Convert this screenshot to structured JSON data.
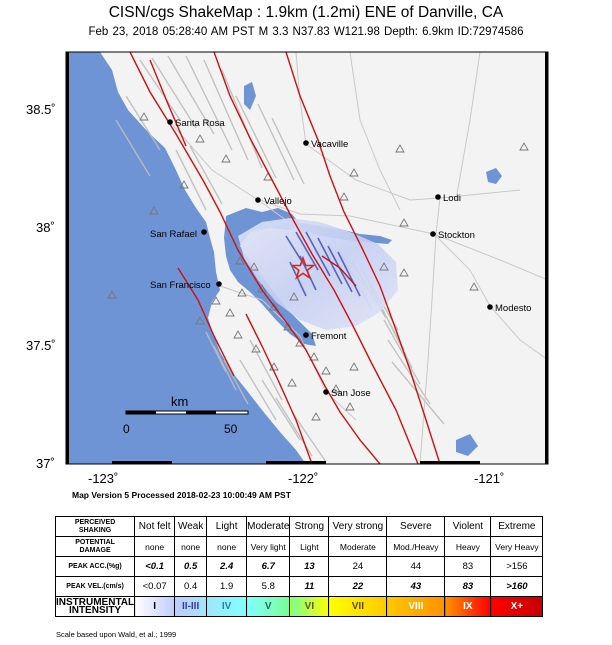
{
  "header": {
    "title": "CISN/cgs ShakeMap : 1.9km (1.2mi) ENE of Danville, CA",
    "subtitle": "Feb 23, 2018 05:28:40 AM PST   M 3.3   N37.83 W121.98   Depth: 6.9km   ID:72974586"
  },
  "map": {
    "lat_labels": [
      "38.5˚",
      "38˚",
      "37.5˚",
      "37˚"
    ],
    "lon_labels": [
      "-123˚",
      "-122˚",
      "-121˚"
    ],
    "cities": [
      "Santa Rosa",
      "Vacaville",
      "Vallejo",
      "Lodi",
      "San Rafael",
      "Stockton",
      "San Francisco",
      "Modesto",
      "Fremont",
      "San Jose"
    ],
    "scale_bar": {
      "unit": "km",
      "start": "0",
      "end": "50"
    },
    "colors": {
      "water": "#6f94d6",
      "land": "#f4f4f4",
      "intensity": "#cfd6f4",
      "faults": "#cc1111",
      "epicenter": "#e0241f"
    }
  },
  "version_line": "Map Version 5 Processed 2018-02-23 10:00:49 AM PST",
  "legend": {
    "row_labels": {
      "shaking": [
        "PERCEIVED",
        "SHAKING"
      ],
      "damage": [
        "POTENTIAL",
        "DAMAGE"
      ],
      "acc": "PEAK ACC.(%g)",
      "vel": "PEAK VEL.(cm/s)",
      "intensity": [
        "INSTRUMENTAL",
        "INTENSITY"
      ]
    },
    "shaking": [
      "Not felt",
      "Weak",
      "Light",
      "Moderate",
      "Strong",
      "Very strong",
      "Severe",
      "Violent",
      "Extreme"
    ],
    "damage": [
      "none",
      "none",
      "none",
      "Very light",
      "Light",
      "Moderate",
      "Mod./Heavy",
      "Heavy",
      "Very Heavy"
    ],
    "acc": [
      "<0.1",
      "0.5",
      "2.4",
      "6.7",
      "13",
      "24",
      "44",
      "83",
      ">156"
    ],
    "vel": [
      "<0.07",
      "0.4",
      "1.9",
      "5.8",
      "11",
      "22",
      "43",
      "83",
      ">160"
    ],
    "intensity": [
      "I",
      "II-III",
      "IV",
      "V",
      "VI",
      "VII",
      "VIII",
      "IX",
      "X+"
    ],
    "intensity_colors": [
      "#ffffff",
      "#bfccff",
      "#a0e6ff",
      "#80ffff",
      "#7aff93",
      "#ffff00",
      "#ffc800",
      "#ff9100",
      "#ff0000",
      "#c80000"
    ]
  },
  "footnote": "Scale based upon Wald, et al.; 1999"
}
